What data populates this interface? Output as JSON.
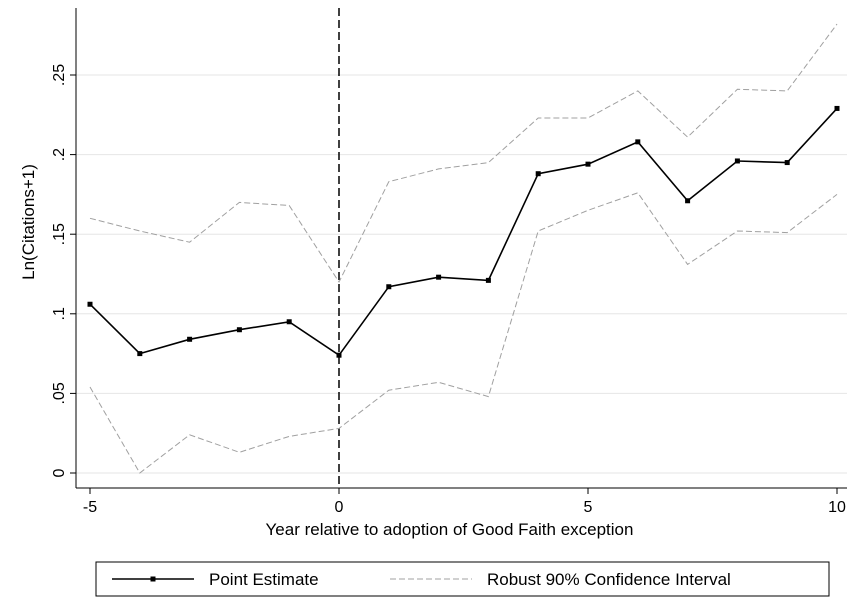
{
  "chart_data": {
    "type": "line",
    "title": "",
    "xlabel": "Year relative to adoption of Good Faith exception",
    "ylabel": "Ln(Citations+1)",
    "xlim": [
      -5,
      10
    ],
    "ylim": [
      0,
      0.28
    ],
    "x_ticks": [
      -5,
      0,
      5,
      10
    ],
    "x_tick_labels": [
      "-5",
      "0",
      "5",
      "10"
    ],
    "y_ticks": [
      0,
      0.05,
      0.1,
      0.15,
      0.2,
      0.25
    ],
    "y_tick_labels": [
      "0",
      ".05",
      ".1",
      ".15",
      ".2",
      ".25"
    ],
    "grid": true,
    "reference_line_x": 0,
    "legend_position": "bottom",
    "x": [
      -5,
      -4,
      -3,
      -2,
      -1,
      0,
      1,
      2,
      3,
      4,
      5,
      6,
      7,
      8,
      9,
      10
    ],
    "series": [
      {
        "name": "Point Estimate",
        "style": "solid-markers",
        "color": "#000000",
        "values": [
          0.106,
          0.075,
          0.084,
          0.09,
          0.095,
          0.074,
          0.117,
          0.123,
          0.121,
          0.188,
          0.194,
          0.208,
          0.171,
          0.196,
          0.195,
          0.229
        ]
      },
      {
        "name": "Robust 90% Confidence Interval",
        "style": "dashed",
        "color": "#a0a0a0",
        "role": "upper",
        "values": [
          0.16,
          0.152,
          0.145,
          0.17,
          0.168,
          0.12,
          0.183,
          0.191,
          0.195,
          0.223,
          0.223,
          0.24,
          0.211,
          0.241,
          0.24,
          0.282
        ]
      },
      {
        "name": "",
        "style": "dashed",
        "color": "#a0a0a0",
        "role": "lower",
        "values": [
          0.054,
          0.0,
          0.024,
          0.013,
          0.023,
          0.028,
          0.052,
          0.057,
          0.048,
          0.152,
          0.165,
          0.176,
          0.131,
          0.152,
          0.151,
          0.175
        ]
      }
    ],
    "legend": [
      {
        "label": "Point Estimate",
        "style": "solid-markers"
      },
      {
        "label": "Robust 90% Confidence Interval",
        "style": "dashed"
      }
    ]
  }
}
